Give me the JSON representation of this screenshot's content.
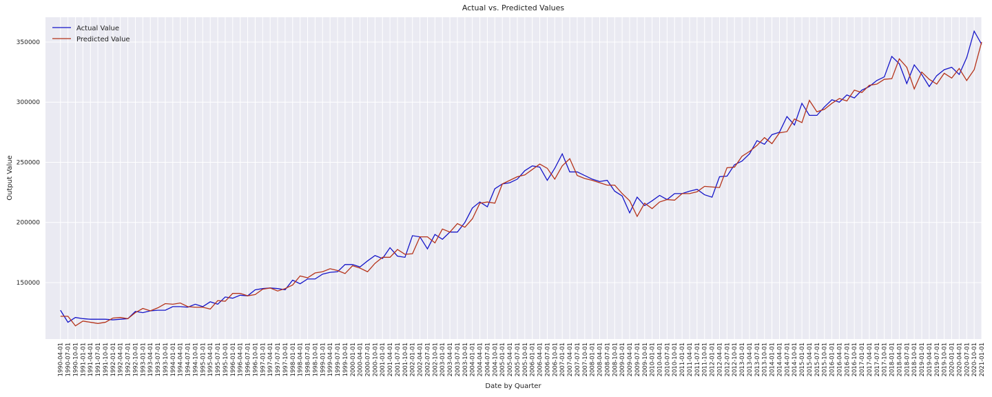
{
  "chart_data": {
    "type": "line",
    "title": "Actual vs. Predicted Values",
    "x_label": "Date by Quarter",
    "y_label": "Output Value",
    "categories": [
      "1990-04-01",
      "1990-07-01",
      "1990-10-01",
      "1991-01-01",
      "1991-04-01",
      "1991-07-01",
      "1991-10-01",
      "1992-01-01",
      "1992-04-01",
      "1992-07-01",
      "1992-10-01",
      "1993-01-01",
      "1993-04-01",
      "1993-07-01",
      "1993-10-01",
      "1994-01-01",
      "1994-04-01",
      "1994-07-01",
      "1994-10-01",
      "1995-01-01",
      "1995-04-01",
      "1995-07-01",
      "1995-10-01",
      "1996-01-01",
      "1996-04-01",
      "1996-07-01",
      "1996-10-01",
      "1997-01-01",
      "1997-04-01",
      "1997-07-01",
      "1997-10-01",
      "1998-01-01",
      "1998-04-01",
      "1998-07-01",
      "1998-10-01",
      "1999-01-01",
      "1999-04-01",
      "1999-07-01",
      "1999-10-01",
      "2000-01-01",
      "2000-04-01",
      "2000-07-01",
      "2000-10-01",
      "2001-01-01",
      "2001-04-01",
      "2001-07-01",
      "2001-10-01",
      "2002-01-01",
      "2002-04-01",
      "2002-07-01",
      "2002-10-01",
      "2003-01-01",
      "2003-04-01",
      "2003-07-01",
      "2003-10-01",
      "2004-01-01",
      "2004-04-01",
      "2004-07-01",
      "2004-10-01",
      "2005-01-01",
      "2005-04-01",
      "2005-07-01",
      "2005-10-01",
      "2006-01-01",
      "2006-04-01",
      "2006-07-01",
      "2006-10-01",
      "2007-01-01",
      "2007-04-01",
      "2007-07-01",
      "2007-10-01",
      "2008-01-01",
      "2008-04-01",
      "2008-07-01",
      "2008-10-01",
      "2009-01-01",
      "2009-04-01",
      "2009-07-01",
      "2009-10-01",
      "2010-01-01",
      "2010-04-01",
      "2010-07-01",
      "2010-10-01",
      "2011-01-01",
      "2011-04-01",
      "2011-07-01",
      "2011-10-01",
      "2012-01-01",
      "2012-04-01",
      "2012-07-01",
      "2012-10-01",
      "2013-01-01",
      "2013-04-01",
      "2013-07-01",
      "2013-10-01",
      "2014-01-01",
      "2014-04-01",
      "2014-07-01",
      "2014-10-01",
      "2015-01-01",
      "2015-04-01",
      "2015-07-01",
      "2015-10-01",
      "2016-01-01",
      "2016-04-01",
      "2016-07-01",
      "2016-10-01",
      "2017-01-01",
      "2017-04-01",
      "2017-07-01",
      "2017-10-01",
      "2018-01-01",
      "2018-04-01",
      "2018-07-01",
      "2018-10-01",
      "2019-01-01",
      "2019-04-01",
      "2019-07-01",
      "2019-10-01",
      "2020-01-01",
      "2020-04-01",
      "2020-07-01",
      "2020-10-01",
      "2021-01-01"
    ],
    "series": [
      {
        "name": "Actual Value",
        "color": "#1414c8",
        "values": [
          127000,
          117000,
          121000,
          120000,
          119500,
          119500,
          119500,
          119000,
          119500,
          120000,
          126000,
          125000,
          126500,
          127000,
          127000,
          130000,
          130000,
          129500,
          132000,
          130000,
          134000,
          132000,
          138000,
          137000,
          139500,
          139000,
          144000,
          145000,
          145500,
          145000,
          144000,
          152000,
          149000,
          153000,
          153000,
          157000,
          158500,
          159000,
          165000,
          165000,
          163000,
          168000,
          172500,
          170000,
          179000,
          172000,
          171000,
          189000,
          188000,
          178000,
          190000,
          186000,
          192000,
          192000,
          200000,
          212000,
          217000,
          213000,
          228000,
          232000,
          233000,
          236000,
          243000,
          247000,
          246000,
          235000,
          245000,
          257000,
          242000,
          242000,
          239000,
          236000,
          234000,
          235000,
          226000,
          222000,
          208000,
          221000,
          214000,
          218000,
          222500,
          219000,
          224000,
          224000,
          226000,
          227500,
          223000,
          221000,
          238000,
          238500,
          248000,
          251000,
          257000,
          268000,
          265000,
          273000,
          275000,
          288000,
          281000,
          299000,
          289000,
          289000,
          296000,
          302000,
          300000,
          306000,
          303500,
          310000,
          313000,
          318000,
          321000,
          338000,
          332000,
          315500,
          331000,
          323000,
          313000,
          322000,
          327000,
          329000,
          323000,
          337000,
          359000,
          348000
        ]
      },
      {
        "name": "Predicted Value",
        "color": "#b5331a",
        "values": [
          122000,
          122000,
          114000,
          118000,
          117000,
          116000,
          117000,
          120500,
          121000,
          120000,
          125000,
          128500,
          126500,
          129000,
          132500,
          132000,
          133000,
          130000,
          129500,
          129500,
          128000,
          135000,
          134500,
          141000,
          141000,
          139000,
          140000,
          144500,
          145500,
          143000,
          145000,
          148000,
          155500,
          154000,
          158000,
          159000,
          161500,
          160000,
          157500,
          164000,
          162000,
          159000,
          166000,
          171000,
          171000,
          177500,
          173500,
          174000,
          188000,
          188000,
          183000,
          194500,
          192000,
          199000,
          196000,
          203000,
          216000,
          217000,
          216000,
          232000,
          235000,
          238000,
          239500,
          244000,
          248500,
          245000,
          236000,
          247000,
          253000,
          239000,
          236500,
          235000,
          233000,
          231000,
          231000,
          224000,
          218000,
          205000,
          216000,
          211500,
          217000,
          219000,
          218500,
          224000,
          224000,
          225500,
          230000,
          229500,
          229000,
          245500,
          246000,
          255000,
          259000,
          264000,
          270500,
          265500,
          274500,
          275500,
          286000,
          283000,
          301500,
          292000,
          294000,
          299000,
          303000,
          301000,
          310000,
          308000,
          314000,
          315000,
          319000,
          319500,
          336000,
          329000,
          311000,
          325000,
          319000,
          315000,
          324000,
          320000,
          328000,
          318000,
          327000,
          350000
        ]
      }
    ],
    "ylim": [
      103000,
      370600
    ],
    "yticks": [
      150000,
      200000,
      250000,
      300000,
      350000
    ],
    "grid": true,
    "legend": "upper left"
  }
}
